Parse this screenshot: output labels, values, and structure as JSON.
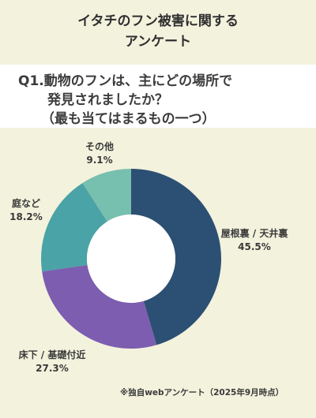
{
  "title_lines": [
    "イタチのフン被害に関する",
    "アンケート"
  ],
  "question_lines": [
    "Q1.動物のフンは、主にどの場所で",
    "発見されましたか？",
    "（最も当てはまるもの一つ）"
  ],
  "footnote": "※独自webアンケート（2025年9月時点）",
  "chart_data": {
    "type": "pie",
    "donut": true,
    "slices": [
      {
        "label": "屋根裏 / 天井裏",
        "value": 45.5,
        "value_label": "45.5%",
        "color": "#2c5073"
      },
      {
        "label": "床下 / 基礎付近",
        "value": 27.3,
        "value_label": "27.3%",
        "color": "#7d5db0"
      },
      {
        "label": "庭など",
        "value": 18.2,
        "value_label": "18.2%",
        "color": "#4aa3a6"
      },
      {
        "label": "その他",
        "value": 9.1,
        "value_label": "9.1%",
        "color": "#77bfae"
      }
    ]
  }
}
